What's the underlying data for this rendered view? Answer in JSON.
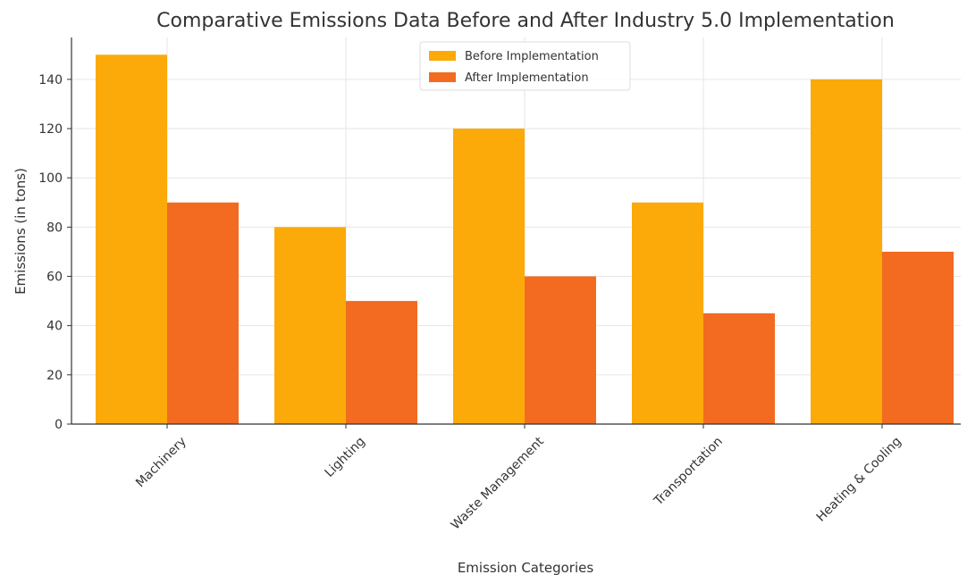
{
  "chart_data": {
    "type": "bar",
    "title": "Comparative Emissions Data Before and After Industry 5.0 Implementation",
    "xlabel": "Emission Categories",
    "ylabel": "Emissions (in tons)",
    "categories": [
      "Machinery",
      "Lighting",
      "Waste Management",
      "Transportation",
      "Heating & Cooling"
    ],
    "series": [
      {
        "name": "Before Implementation",
        "values": [
          150,
          80,
          120,
          90,
          140
        ],
        "color": "#FBAA0A"
      },
      {
        "name": "After Implementation",
        "values": [
          90,
          50,
          60,
          45,
          70
        ],
        "color": "#F26B21"
      }
    ],
    "ylim": [
      0,
      157
    ],
    "yticks": [
      0,
      20,
      40,
      60,
      80,
      100,
      120,
      140
    ],
    "grid": true,
    "legend_position": "top-center"
  }
}
